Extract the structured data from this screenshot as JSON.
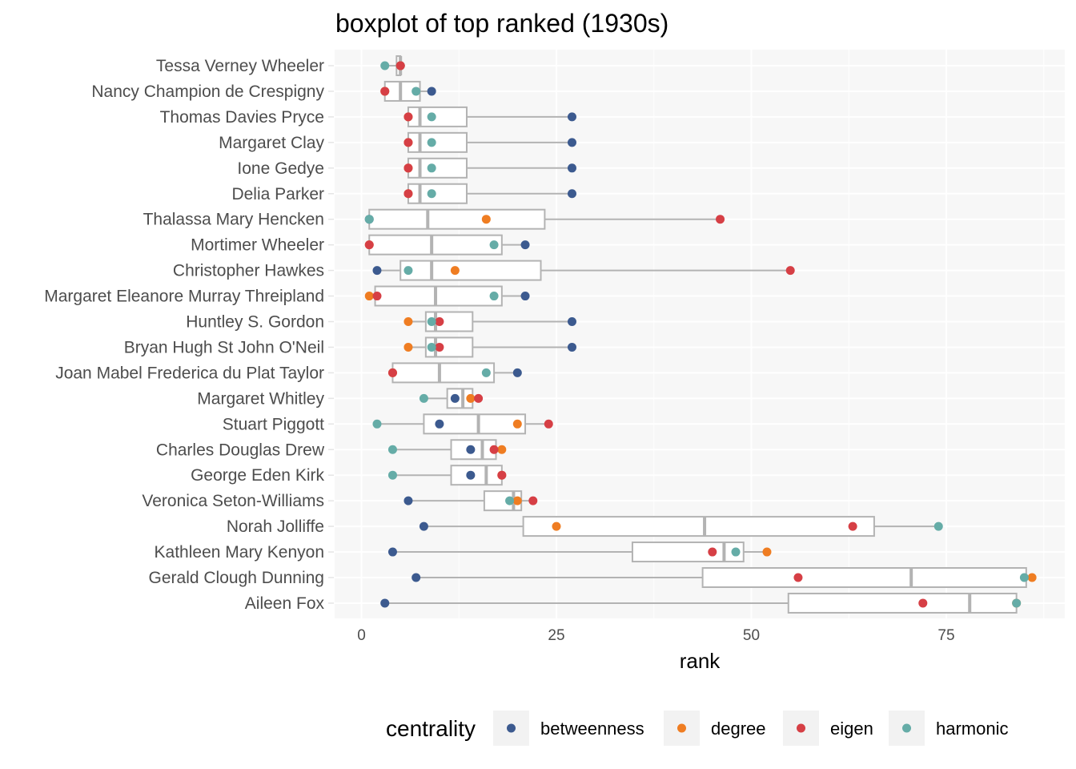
{
  "chart_data": {
    "type": "boxplot",
    "title": "boxplot of top ranked (1930s)",
    "xlabel": "rank",
    "ylabel": "",
    "xlim": [
      -0.5,
      90
    ],
    "xticks": [
      0,
      25,
      50,
      75
    ],
    "grid": true,
    "legend": {
      "title": "centrality",
      "position": "bottom",
      "entries": [
        {
          "name": "betweenness",
          "color": "#3c5a8f"
        },
        {
          "name": "degree",
          "color": "#ef7d22"
        },
        {
          "name": "eigen",
          "color": "#d63f45"
        },
        {
          "name": "harmonic",
          "color": "#65aca7"
        }
      ]
    },
    "series_order": [
      "betweenness",
      "degree",
      "eigen",
      "harmonic"
    ],
    "categories": [
      {
        "name": "Tessa Verney Wheeler",
        "box": [
          3,
          4.5,
          5,
          5,
          5
        ],
        "points": {
          "betweenness": 5,
          "degree": 5,
          "eigen": 5,
          "harmonic": 3
        }
      },
      {
        "name": "Nancy Champion de Crespigny",
        "box": [
          3,
          3,
          5,
          7.5,
          9
        ],
        "points": {
          "betweenness": 9,
          "degree": 3,
          "eigen": 3,
          "harmonic": 7
        }
      },
      {
        "name": "Thomas Davies Pryce",
        "box": [
          6,
          6,
          7.5,
          13.5,
          27
        ],
        "points": {
          "betweenness": 27,
          "degree": 6,
          "eigen": 6,
          "harmonic": 9
        }
      },
      {
        "name": "Margaret Clay",
        "box": [
          6,
          6,
          7.5,
          13.5,
          27
        ],
        "points": {
          "betweenness": 27,
          "degree": 6,
          "eigen": 6,
          "harmonic": 9
        }
      },
      {
        "name": "Ione Gedye",
        "box": [
          6,
          6,
          7.5,
          13.5,
          27
        ],
        "points": {
          "betweenness": 27,
          "degree": 6,
          "eigen": 6,
          "harmonic": 9
        }
      },
      {
        "name": "Delia Parker",
        "box": [
          6,
          6,
          7.5,
          13.5,
          27
        ],
        "points": {
          "betweenness": 27,
          "degree": 6,
          "eigen": 6,
          "harmonic": 9
        }
      },
      {
        "name": "Thalassa Mary Hencken",
        "box": [
          1,
          1,
          8.5,
          23.5,
          46
        ],
        "points": {
          "betweenness": 1,
          "degree": 16,
          "eigen": 46,
          "harmonic": 1
        }
      },
      {
        "name": "Mortimer Wheeler",
        "box": [
          1,
          1,
          9,
          18,
          21
        ],
        "points": {
          "betweenness": 21,
          "degree": 1,
          "eigen": 1,
          "harmonic": 17
        }
      },
      {
        "name": "Christopher Hawkes",
        "box": [
          2,
          5,
          9,
          23,
          55
        ],
        "points": {
          "betweenness": 2,
          "degree": 12,
          "eigen": 55,
          "harmonic": 6
        }
      },
      {
        "name": "Margaret Eleanore Murray Threipland",
        "box": [
          1,
          1.75,
          9.5,
          18,
          21
        ],
        "points": {
          "betweenness": 21,
          "degree": 1,
          "eigen": 2,
          "harmonic": 17
        }
      },
      {
        "name": "Huntley S. Gordon",
        "box": [
          6,
          8.25,
          9.5,
          14.25,
          27
        ],
        "points": {
          "betweenness": 27,
          "degree": 6,
          "eigen": 10,
          "harmonic": 9
        }
      },
      {
        "name": "Bryan Hugh St John O'Neil",
        "box": [
          6,
          8.25,
          9.5,
          14.25,
          27
        ],
        "points": {
          "betweenness": 27,
          "degree": 6,
          "eigen": 10,
          "harmonic": 9
        }
      },
      {
        "name": "Joan Mabel Frederica du Plat Taylor",
        "box": [
          4,
          4,
          10,
          17,
          20
        ],
        "points": {
          "betweenness": 20,
          "degree": 4,
          "eigen": 4,
          "harmonic": 16
        }
      },
      {
        "name": "Margaret Whitley",
        "box": [
          8,
          11,
          13,
          14.25,
          15
        ],
        "points": {
          "betweenness": 12,
          "degree": 14,
          "eigen": 15,
          "harmonic": 8
        }
      },
      {
        "name": "Stuart Piggott",
        "box": [
          2,
          8,
          15,
          21,
          24
        ],
        "points": {
          "betweenness": 10,
          "degree": 20,
          "eigen": 24,
          "harmonic": 2
        }
      },
      {
        "name": "Charles Douglas Drew",
        "box": [
          4,
          11.5,
          15.5,
          17.25,
          18
        ],
        "points": {
          "betweenness": 14,
          "degree": 18,
          "eigen": 17,
          "harmonic": 4
        }
      },
      {
        "name": "George Eden Kirk",
        "box": [
          4,
          11.5,
          16,
          18,
          18
        ],
        "points": {
          "betweenness": 14,
          "degree": 18,
          "eigen": 18,
          "harmonic": 4
        }
      },
      {
        "name": "Veronica Seton-Williams",
        "box": [
          6,
          15.75,
          19.5,
          20.5,
          22
        ],
        "points": {
          "betweenness": 6,
          "degree": 20,
          "eigen": 22,
          "harmonic": 19
        }
      },
      {
        "name": "Norah Jolliffe",
        "box": [
          8,
          20.75,
          44,
          65.75,
          74
        ],
        "points": {
          "betweenness": 8,
          "degree": 25,
          "eigen": 63,
          "harmonic": 74
        }
      },
      {
        "name": "Kathleen Mary Kenyon",
        "box": [
          4,
          34.75,
          46.5,
          49,
          52
        ],
        "points": {
          "betweenness": 4,
          "degree": 52,
          "eigen": 45,
          "harmonic": 48
        }
      },
      {
        "name": "Gerald Clough Dunning",
        "box": [
          7,
          43.75,
          70.5,
          85.25,
          86
        ],
        "points": {
          "betweenness": 7,
          "degree": 86,
          "eigen": 56,
          "harmonic": 85
        }
      },
      {
        "name": "Aileen Fox",
        "box": [
          3,
          54.75,
          78,
          84,
          84
        ],
        "points": {
          "betweenness": 3,
          "degree": 84,
          "eigen": 72,
          "harmonic": 84
        }
      }
    ]
  }
}
